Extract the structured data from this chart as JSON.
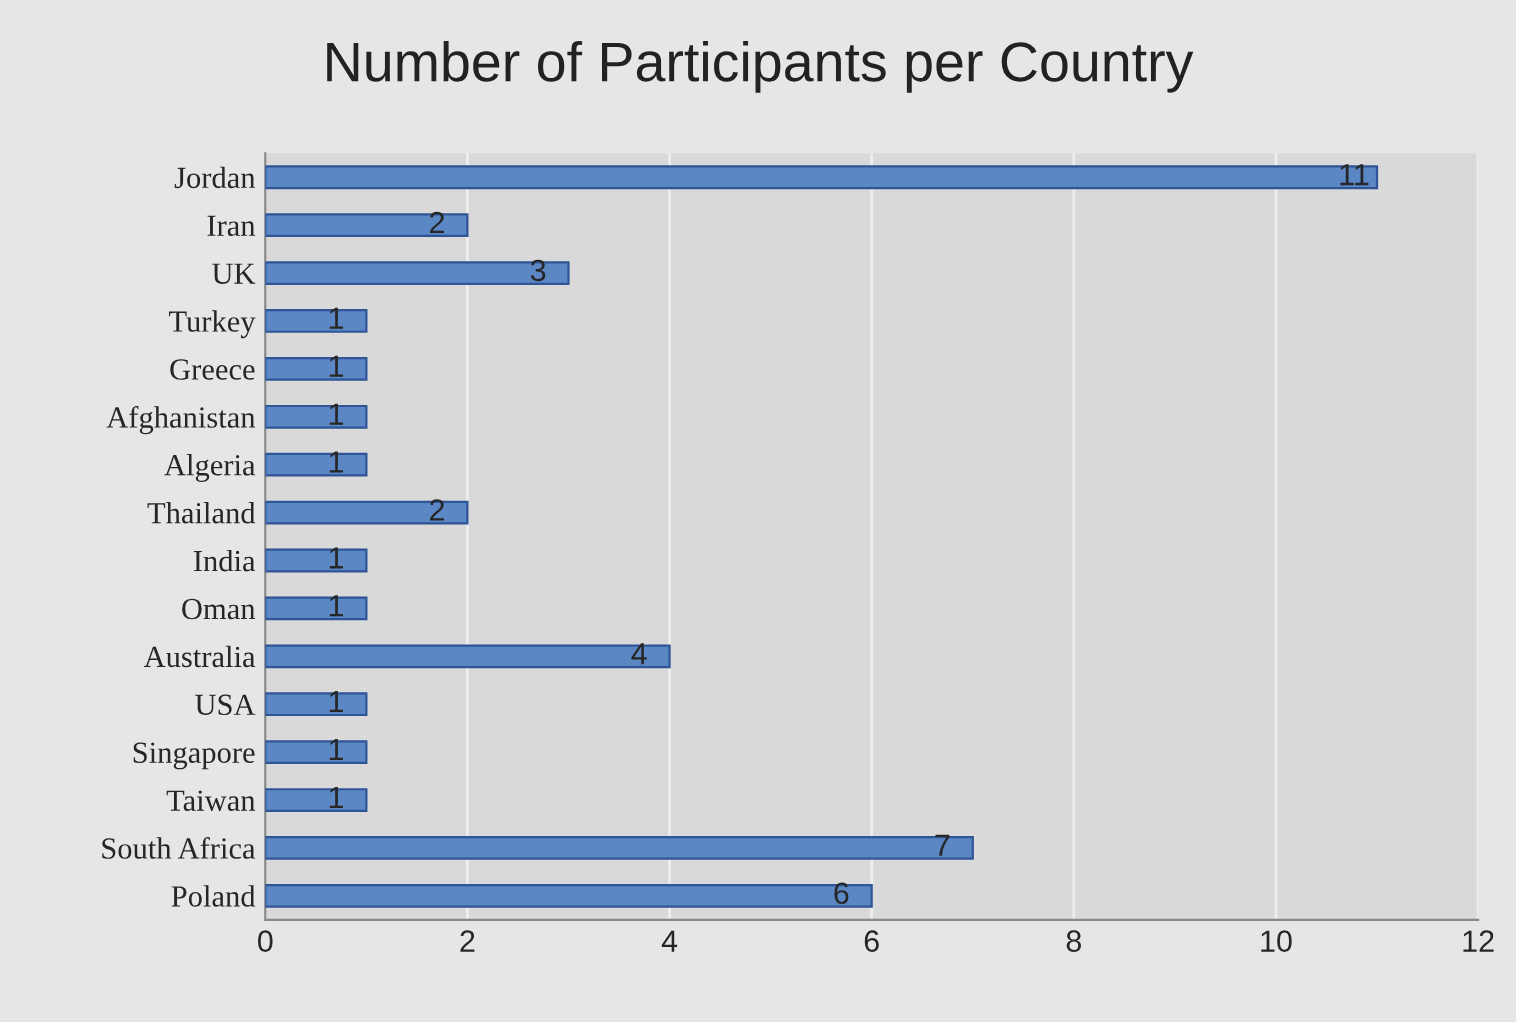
{
  "chart_data": {
    "type": "bar",
    "orientation": "horizontal",
    "title": "Number of Participants per Country",
    "categories": [
      "Jordan",
      "Iran",
      "UK",
      "Turkey",
      "Greece",
      "Afghanistan",
      "Algeria",
      "Thailand",
      "India",
      "Oman",
      "Australia",
      "USA",
      "Singapore",
      "Taiwan",
      "South Africa",
      "Poland"
    ],
    "values": [
      11,
      2,
      3,
      1,
      1,
      1,
      1,
      2,
      1,
      1,
      4,
      1,
      1,
      1,
      7,
      6
    ],
    "color": "#5b87c5",
    "xlim": [
      0,
      12
    ],
    "xticks": [
      0,
      2,
      4,
      6,
      8,
      10,
      12
    ],
    "grid": "x",
    "data_labels": true
  }
}
